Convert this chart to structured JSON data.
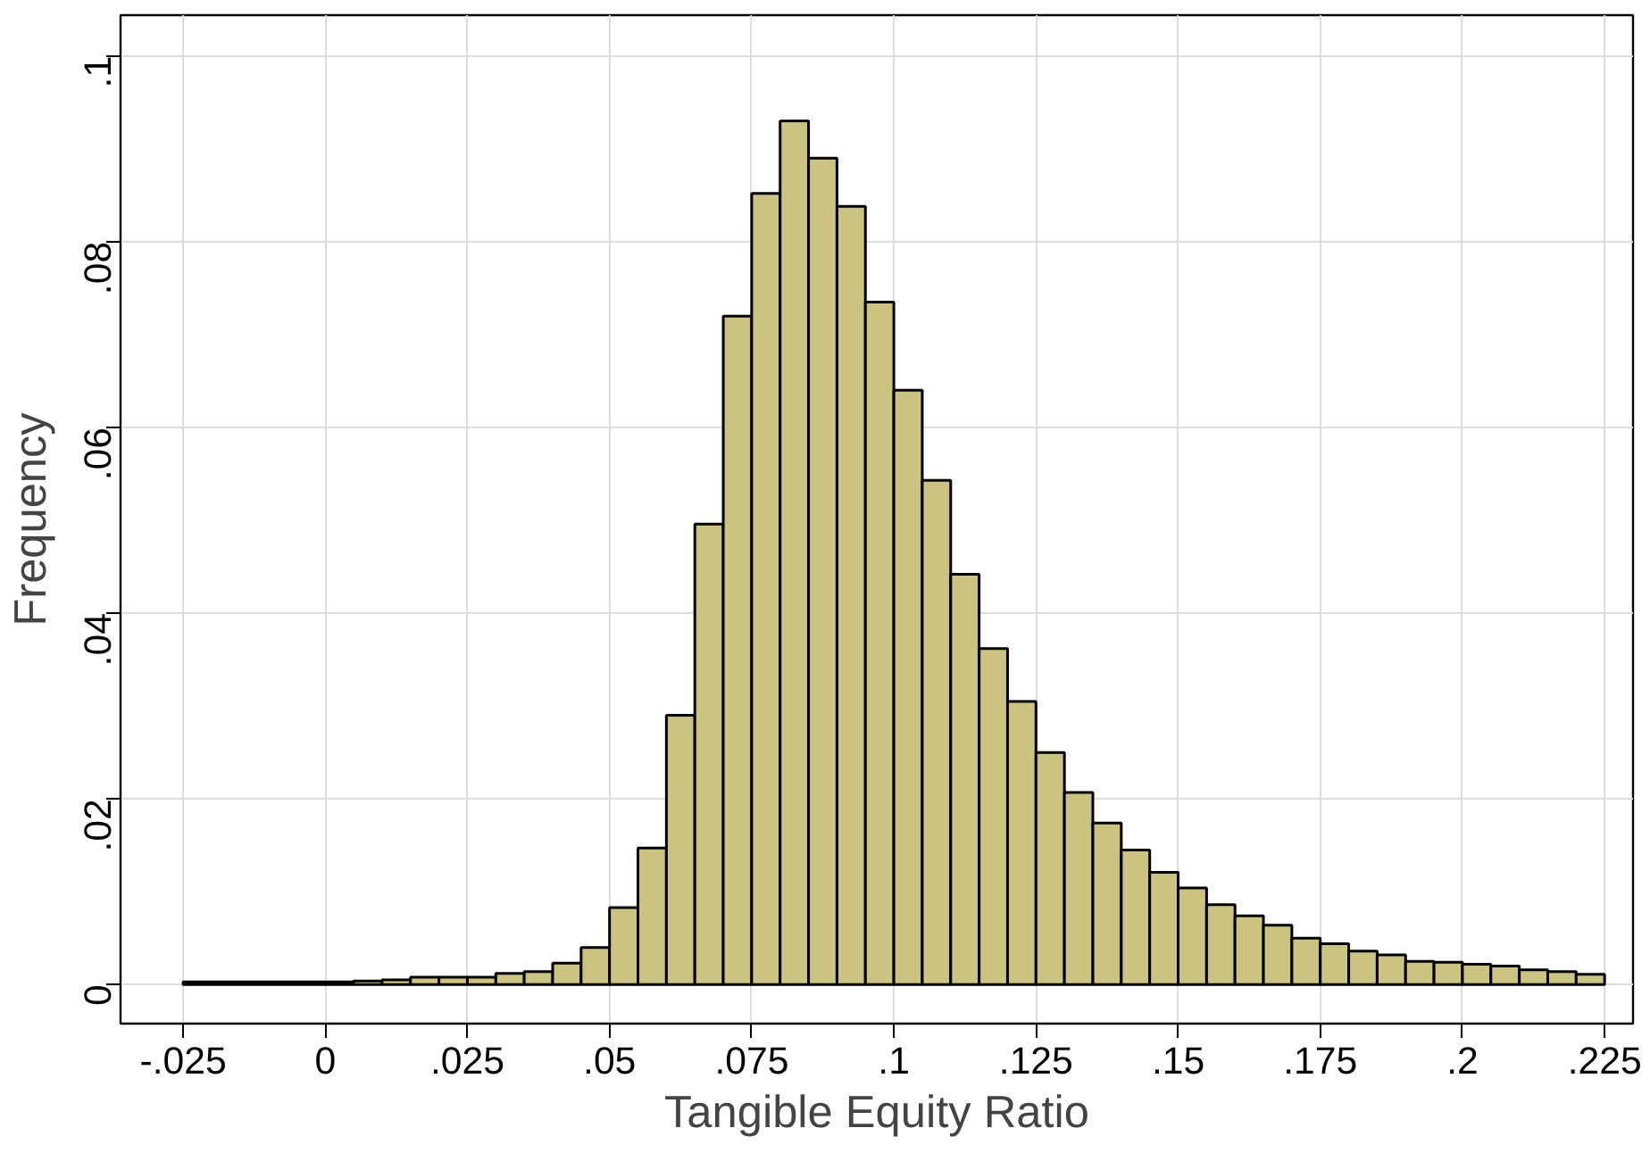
{
  "chart_data": {
    "type": "histogram",
    "xlabel": "Tangible Equity Ratio",
    "ylabel": "Frequency",
    "color": "#cbc382",
    "bins": [
      -0.025,
      -0.02,
      -0.015,
      -0.01,
      -0.005,
      0,
      0.005,
      0.01,
      0.015,
      0.02,
      0.025,
      0.03,
      0.035,
      0.04,
      0.045,
      0.05,
      0.055,
      0.06,
      0.065,
      0.07,
      0.075,
      0.08,
      0.085,
      0.09,
      0.095,
      0.1,
      0.105,
      0.11,
      0.115,
      0.12,
      0.125,
      0.13,
      0.135,
      0.14,
      0.145,
      0.15,
      0.155,
      0.16,
      0.165,
      0.17,
      0.175,
      0.18,
      0.185,
      0.19,
      0.195,
      0.2,
      0.205,
      0.21,
      0.215,
      0.22,
      0.225
    ],
    "values": [
      0.0003,
      0.0003,
      0.0003,
      0.0003,
      0.0003,
      0.0003,
      0.0004,
      0.0005,
      0.0008,
      0.0008,
      0.0008,
      0.0012,
      0.0014,
      0.0023,
      0.004,
      0.0083,
      0.0147,
      0.029,
      0.0496,
      0.072,
      0.0852,
      0.093,
      0.089,
      0.0838,
      0.0735,
      0.064,
      0.0543,
      0.0442,
      0.0362,
      0.0305,
      0.025,
      0.0207,
      0.0174,
      0.0145,
      0.0121,
      0.0104,
      0.0086,
      0.0074,
      0.0064,
      0.005,
      0.0044,
      0.0036,
      0.0032,
      0.0025,
      0.0024,
      0.0022,
      0.002,
      0.0016,
      0.0014,
      0.0011
    ],
    "xlim": [
      -0.036,
      0.23
    ],
    "ylim": [
      -0.0042,
      0.1044
    ],
    "xticks": [
      {
        "value": -0.025,
        "label": "-.025"
      },
      {
        "value": 0,
        "label": "0"
      },
      {
        "value": 0.025,
        "label": ".025"
      },
      {
        "value": 0.05,
        "label": ".05"
      },
      {
        "value": 0.075,
        "label": ".075"
      },
      {
        "value": 0.1,
        "label": ".1"
      },
      {
        "value": 0.125,
        "label": ".125"
      },
      {
        "value": 0.15,
        "label": ".15"
      },
      {
        "value": 0.175,
        "label": ".175"
      },
      {
        "value": 0.2,
        "label": ".2"
      },
      {
        "value": 0.225,
        "label": ".225"
      }
    ],
    "yticks": [
      {
        "value": 0,
        "label": "0"
      },
      {
        "value": 0.02,
        "label": ".02"
      },
      {
        "value": 0.04,
        "label": ".04"
      },
      {
        "value": 0.06,
        "label": ".06"
      },
      {
        "value": 0.08,
        "label": ".08"
      },
      {
        "value": 0.1,
        "label": ".1"
      }
    ],
    "grid": true
  }
}
